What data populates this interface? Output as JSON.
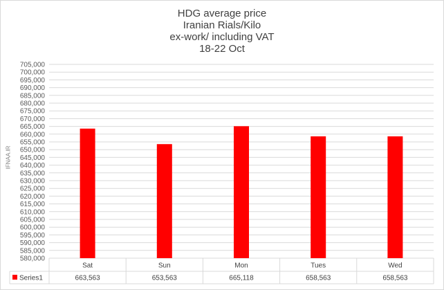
{
  "chart_data": {
    "type": "bar",
    "title_lines": [
      "HDG average price",
      "Iranian Rials/Kilo",
      "ex-work/ including VAT",
      "18-22 Oct"
    ],
    "categories": [
      "Sat",
      "Sun",
      "Mon",
      "Tues",
      "Wed"
    ],
    "series": [
      {
        "name": "Series1",
        "values": [
          663563,
          653563,
          665118,
          658563,
          658563
        ],
        "color": "#ff0000"
      }
    ],
    "data_table": [
      "663,563",
      "653,563",
      "665,118",
      "658,563",
      "658,563"
    ],
    "y_ticks": [
      "580,000",
      "585,000",
      "590,000",
      "595,000",
      "600,000",
      "605,000",
      "610,000",
      "615,000",
      "620,000",
      "625,000",
      "630,000",
      "635,000",
      "640,000",
      "645,000",
      "650,000",
      "655,000",
      "660,000",
      "665,000",
      "670,000",
      "675,000",
      "680,000",
      "685,000",
      "690,000",
      "695,000",
      "700,000",
      "705,000"
    ],
    "ylim": [
      580000,
      705000
    ],
    "ytick_step": 5000,
    "grid": true,
    "legend_in_table": true
  },
  "watermark": "IFNAA.IR"
}
